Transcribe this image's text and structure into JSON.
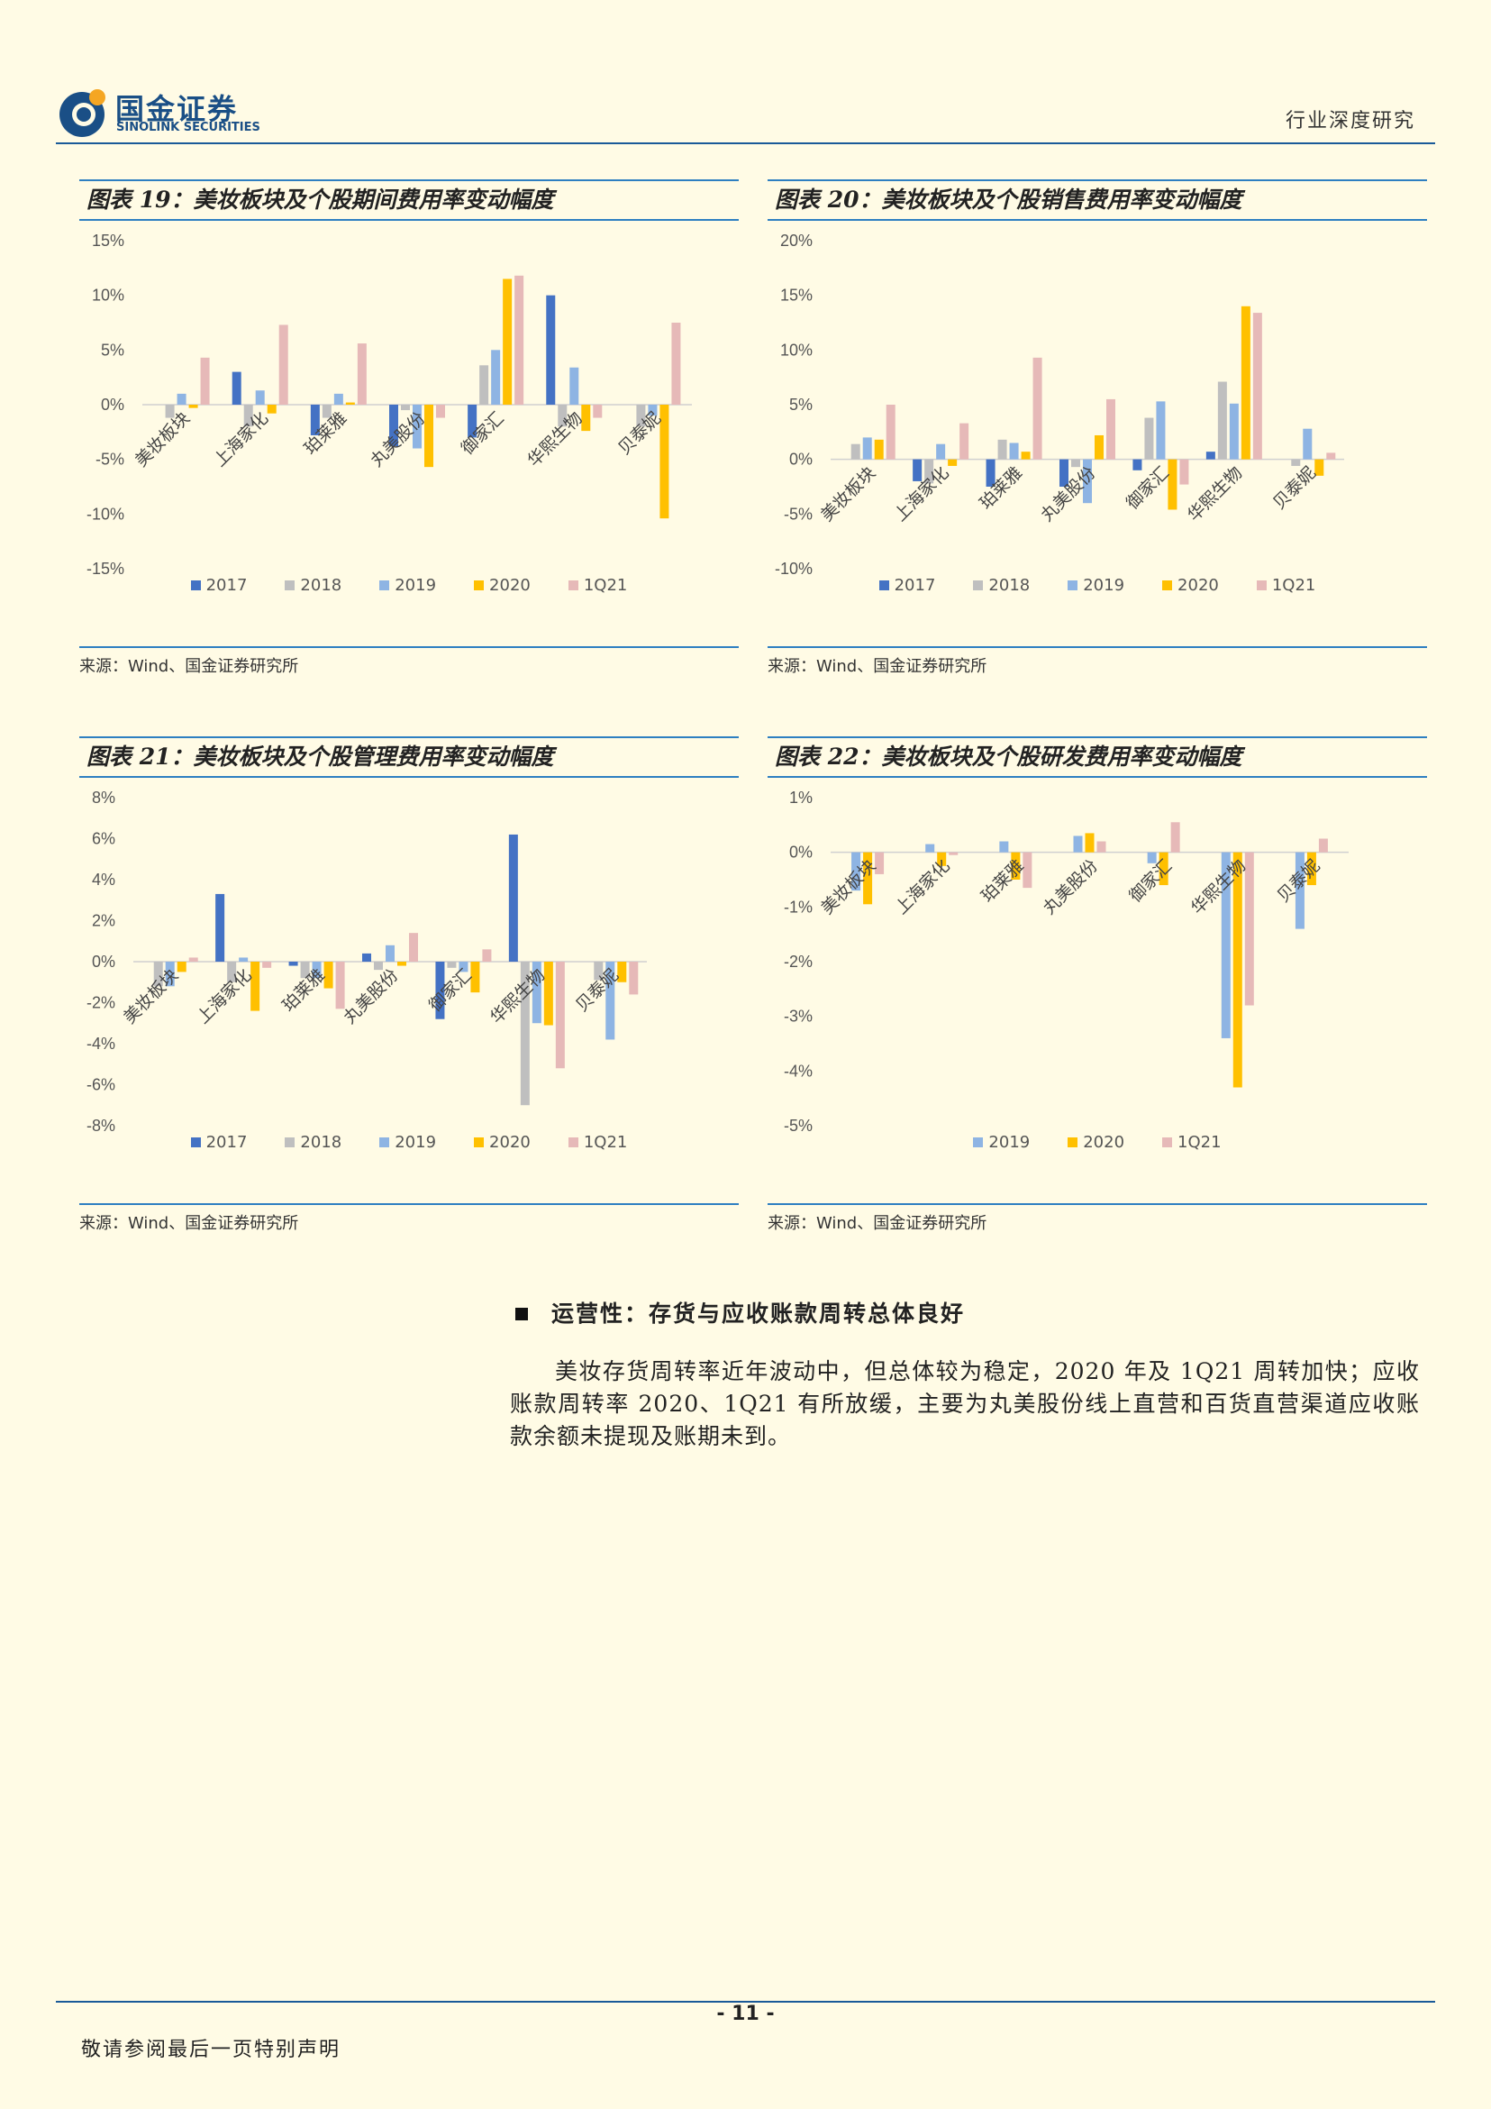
{
  "header": {
    "logo_cn": "国金证券",
    "logo_en": "SINOLINK SECURITIES",
    "report_type": "行业深度研究"
  },
  "colors": {
    "2017": "#4472c4",
    "2018": "#bfbfbf",
    "2019": "#8eb4e3",
    "2020": "#ffc000",
    "1Q21": "#e6b9b8",
    "accent": "#2e7fc1"
  },
  "charts": [
    {
      "title": "图表 19：美妆板块及个股期间费用率变动幅度",
      "source": "来源：Wind、国金证券研究所",
      "legend": [
        "2017",
        "2018",
        "2019",
        "2020",
        "1Q21"
      ]
    },
    {
      "title": "图表 20：美妆板块及个股销售费用率变动幅度",
      "source": "来源：Wind、国金证券研究所",
      "legend": [
        "2017",
        "2018",
        "2019",
        "2020",
        "1Q21"
      ]
    },
    {
      "title": "图表 21：美妆板块及个股管理费用率变动幅度",
      "source": "来源：Wind、国金证券研究所",
      "legend": [
        "2017",
        "2018",
        "2019",
        "2020",
        "1Q21"
      ]
    },
    {
      "title": "图表 22：美妆板块及个股研发费用率变动幅度",
      "source": "来源：Wind、国金证券研究所",
      "legend": [
        "2019",
        "2020",
        "1Q21"
      ]
    }
  ],
  "chart_data": [
    {
      "type": "bar",
      "categories": [
        "美妆板块",
        "上海家化",
        "珀莱雅",
        "丸美股份",
        "御家汇",
        "华熙生物",
        "贝泰妮"
      ],
      "ytick_labels": [
        "15%",
        "10%",
        "5%",
        "0%",
        "-5%",
        "-10%",
        "-15%"
      ],
      "ylim": [
        -15,
        15
      ],
      "series": [
        {
          "name": "2017",
          "values": [
            null,
            3.0,
            -2.8,
            -3.8,
            -3.0,
            10.0,
            null
          ]
        },
        {
          "name": "2018",
          "values": [
            -1.2,
            -2.0,
            -1.2,
            -0.5,
            3.6,
            -2.0,
            -2.0
          ]
        },
        {
          "name": "2019",
          "values": [
            1.0,
            1.3,
            1.0,
            -4.0,
            5.0,
            3.4,
            -1.0
          ]
        },
        {
          "name": "2020",
          "values": [
            -0.3,
            -0.8,
            0.2,
            -5.7,
            11.5,
            -2.4,
            -10.4
          ]
        },
        {
          "name": "1Q21",
          "values": [
            4.3,
            7.3,
            5.6,
            -1.2,
            11.8,
            -1.2,
            7.5
          ]
        }
      ]
    },
    {
      "type": "bar",
      "categories": [
        "美妆板块",
        "上海家化",
        "珀莱雅",
        "丸美股份",
        "御家汇",
        "华熙生物",
        "贝泰妮"
      ],
      "ytick_labels": [
        "20%",
        "15%",
        "10%",
        "5%",
        "0%",
        "-5%",
        "-10%"
      ],
      "ylim": [
        -10,
        20
      ],
      "series": [
        {
          "name": "2017",
          "values": [
            null,
            -2.0,
            -2.5,
            -2.5,
            -1.0,
            0.7,
            null
          ]
        },
        {
          "name": "2018",
          "values": [
            1.4,
            -2.2,
            1.8,
            -0.7,
            3.8,
            7.1,
            -0.6
          ]
        },
        {
          "name": "2019",
          "values": [
            2.0,
            1.4,
            1.5,
            -4.0,
            5.3,
            5.1,
            2.8
          ]
        },
        {
          "name": "2020",
          "values": [
            1.8,
            -0.6,
            0.7,
            2.2,
            -4.6,
            14.0,
            -1.5
          ]
        },
        {
          "name": "1Q21",
          "values": [
            5.0,
            3.3,
            9.3,
            5.5,
            -2.3,
            13.4,
            0.6
          ]
        }
      ]
    },
    {
      "type": "bar",
      "categories": [
        "美妆板块",
        "上海家化",
        "珀莱雅",
        "丸美股份",
        "御家汇",
        "华熙生物",
        "贝泰妮"
      ],
      "ytick_labels": [
        "8%",
        "6%",
        "4%",
        "2%",
        "0%",
        "-2%",
        "-4%",
        "-6%",
        "-8%"
      ],
      "ylim": [
        -8,
        8
      ],
      "series": [
        {
          "name": "2017",
          "values": [
            null,
            3.3,
            -0.2,
            0.4,
            -2.8,
            6.2,
            null
          ]
        },
        {
          "name": "2018",
          "values": [
            -1.2,
            -1.0,
            -0.8,
            -0.4,
            -0.3,
            -7.0,
            -0.9
          ]
        },
        {
          "name": "2019",
          "values": [
            -1.2,
            0.2,
            -0.8,
            0.8,
            -0.5,
            -3.0,
            -3.8
          ]
        },
        {
          "name": "2020",
          "values": [
            -0.5,
            -2.4,
            -1.3,
            -0.2,
            -1.5,
            -3.1,
            -1.0
          ]
        },
        {
          "name": "1Q21",
          "values": [
            0.2,
            -0.3,
            -2.3,
            1.4,
            0.6,
            -5.2,
            -1.6
          ]
        }
      ]
    },
    {
      "type": "bar",
      "categories": [
        "美妆板块",
        "上海家化",
        "珀莱雅",
        "丸美股份",
        "御家汇",
        "华熙生物",
        "贝泰妮"
      ],
      "ytick_labels": [
        "1%",
        "0%",
        "-1%",
        "-2%",
        "-3%",
        "-4%",
        "-5%"
      ],
      "ylim": [
        -5,
        1
      ],
      "series": [
        {
          "name": "2019",
          "values": [
            -0.7,
            0.15,
            0.2,
            0.3,
            -0.2,
            -3.4,
            -1.4
          ]
        },
        {
          "name": "2020",
          "values": [
            -0.95,
            -0.25,
            -0.5,
            0.35,
            -0.6,
            -4.3,
            -0.6
          ]
        },
        {
          "name": "1Q21",
          "values": [
            -0.4,
            -0.05,
            -0.65,
            0.2,
            0.55,
            -2.8,
            0.25
          ]
        }
      ]
    }
  ],
  "section": {
    "heading": "运营性：存货与应收账款周转总体良好",
    "paragraph": "美妆存货周转率近年波动中，但总体较为稳定，2020 年及 1Q21 周转加快；应收账款周转率 2020、1Q21 有所放缓，主要为丸美股份线上直营和百货直营渠道应收账款余额未提现及账期未到。"
  },
  "footer": {
    "page": "- 11 -",
    "note": "敬请参阅最后一页特别声明"
  }
}
